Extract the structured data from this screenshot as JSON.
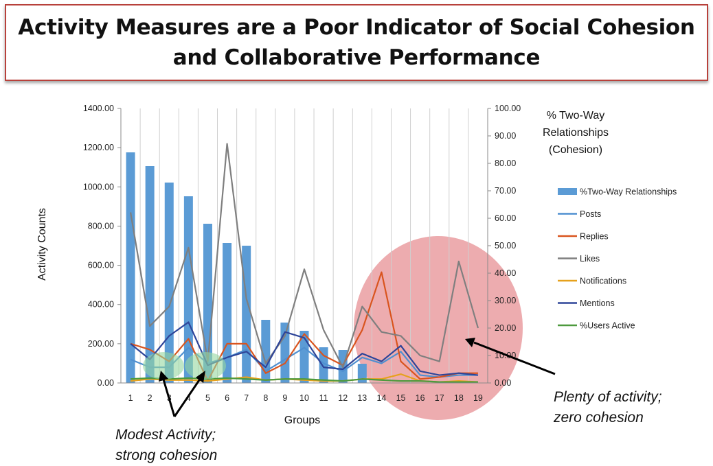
{
  "title": {
    "line1": "Activity Measures are a Poor Indicator of Social Cohesion",
    "line2": "and Collaborative Performance"
  },
  "chart_data": {
    "type": "bar",
    "categories": [
      "1",
      "2",
      "3",
      "4",
      "5",
      "6",
      "7",
      "8",
      "9",
      "10",
      "11",
      "12",
      "13",
      "14",
      "15",
      "16",
      "17",
      "18",
      "19"
    ],
    "xlabel": "Groups",
    "ylabel": "Activity Counts",
    "ylabel_right": [
      "% Two-Way",
      "Relationships",
      "(Cohesion)"
    ],
    "ylim": [
      0,
      1400
    ],
    "ylim_right": [
      0,
      100
    ],
    "yticks": [
      "0.00",
      "200.00",
      "400.00",
      "600.00",
      "800.00",
      "1000.00",
      "1200.00",
      "1400.00"
    ],
    "yticks_right": [
      "0.00",
      "10.00",
      "20.00",
      "30.00",
      "40.00",
      "50.00",
      "60.00",
      "70.00",
      "80.00",
      "90.00",
      "100.00"
    ],
    "grid": "vertical",
    "legend_position": "right",
    "series": [
      {
        "name": "%Two-Way Relationships",
        "type": "bar",
        "axis": "right",
        "color": "#5b9bd5",
        "values": [
          84,
          79,
          73,
          68,
          58,
          51,
          50,
          23,
          22,
          19,
          13,
          12,
          7,
          0,
          0,
          0,
          0,
          0,
          0
        ]
      },
      {
        "name": "Posts",
        "type": "line",
        "axis": "left",
        "color": "#4f8fd0",
        "values": [
          120,
          80,
          80,
          180,
          100,
          130,
          170,
          60,
          120,
          180,
          100,
          60,
          130,
          100,
          160,
          40,
          30,
          40,
          40
        ]
      },
      {
        "name": "Replies",
        "type": "line",
        "axis": "left",
        "color": "#d9541e",
        "values": [
          200,
          170,
          110,
          225,
          10,
          200,
          200,
          50,
          100,
          250,
          140,
          90,
          270,
          565,
          110,
          20,
          30,
          50,
          50
        ]
      },
      {
        "name": "Likes",
        "type": "line",
        "axis": "left",
        "color": "#7f7f7f",
        "values": [
          870,
          290,
          390,
          690,
          110,
          1220,
          430,
          100,
          240,
          580,
          270,
          80,
          390,
          260,
          240,
          140,
          110,
          620,
          280
        ]
      },
      {
        "name": "Notifications",
        "type": "line",
        "axis": "left",
        "color": "#e6a11c",
        "values": [
          10,
          20,
          15,
          15,
          10,
          20,
          30,
          15,
          20,
          15,
          10,
          10,
          20,
          20,
          45,
          10,
          5,
          10,
          5
        ]
      },
      {
        "name": "Mentions",
        "type": "line",
        "axis": "left",
        "color": "#2e4599",
        "values": [
          200,
          120,
          240,
          310,
          90,
          130,
          160,
          80,
          260,
          230,
          80,
          70,
          150,
          110,
          190,
          60,
          40,
          50,
          40
        ]
      },
      {
        "name": "%Users Active",
        "type": "line",
        "axis": "left",
        "color": "#4e9a3e",
        "values": [
          20,
          25,
          20,
          25,
          20,
          25,
          20,
          15,
          20,
          20,
          15,
          10,
          20,
          15,
          10,
          10,
          5,
          5,
          5
        ]
      }
    ],
    "annotations": [
      {
        "lines": [
          "Modest Activity;",
          "strong cohesion"
        ]
      },
      {
        "lines": [
          "Plenty of activity;",
          "zero cohesion"
        ]
      }
    ]
  }
}
